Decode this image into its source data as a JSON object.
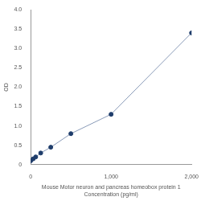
{
  "chart_data": {
    "type": "line",
    "title": "Mouse Motor neuron and pancreas homeobox protein 1",
    "x_label": "Concentration (pg/ml)",
    "y_label": "OD",
    "x": [
      0,
      31.25,
      62.5,
      125,
      250,
      500,
      1000,
      2000
    ],
    "values": [
      0.1,
      0.15,
      0.2,
      0.3,
      0.45,
      0.8,
      1.3,
      3.4
    ],
    "color": "#1f3d6b",
    "marker": "circle",
    "xlim": [
      0,
      2000
    ],
    "xticks": [
      0,
      1000,
      2000
    ],
    "ylim": [
      0,
      4
    ],
    "yticks": [
      0,
      0.5,
      1,
      1.5,
      2,
      2.5,
      3,
      3.5,
      4
    ],
    "grid": false
  }
}
